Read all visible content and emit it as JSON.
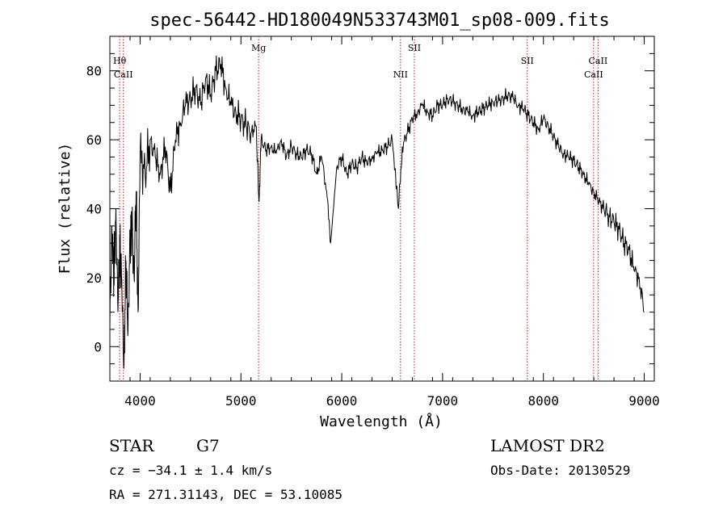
{
  "chart_data": {
    "type": "line",
    "title": "spec-56442-HD180049N533743M01_sp08-009.fits",
    "xlabel": "Wavelength (Å)",
    "ylabel": "Flux (relative)",
    "xlim": [
      3700,
      9100
    ],
    "ylim": [
      -10,
      90
    ],
    "x_ticks": [
      4000,
      5000,
      6000,
      7000,
      8000,
      9000
    ],
    "y_ticks": [
      0,
      20,
      40,
      60,
      80
    ],
    "grid": false,
    "series": [
      {
        "x": [
          3700,
          3720,
          3740,
          3760,
          3780,
          3800,
          3820,
          3840,
          3860,
          3880,
          3900,
          3920,
          3940,
          3960,
          3980,
          4000,
          4050,
          4100,
          4150,
          4200,
          4250,
          4300,
          4350,
          4400,
          4450,
          4500,
          4550,
          4600,
          4650,
          4700,
          4750,
          4800,
          4850,
          4900,
          4950,
          5000,
          5050,
          5100,
          5150,
          5180,
          5200,
          5250,
          5300,
          5350,
          5400,
          5450,
          5500,
          5550,
          5600,
          5650,
          5700,
          5750,
          5800,
          5850,
          5890,
          5950,
          6000,
          6050,
          6100,
          6150,
          6200,
          6250,
          6300,
          6350,
          6400,
          6450,
          6500,
          6563,
          6600,
          6650,
          6700,
          6750,
          6800,
          6850,
          6900,
          6950,
          7000,
          7050,
          7100,
          7150,
          7200,
          7250,
          7300,
          7350,
          7400,
          7450,
          7500,
          7550,
          7600,
          7650,
          7700,
          7750,
          7800,
          7850,
          7900,
          7950,
          8000,
          8050,
          8100,
          8150,
          8200,
          8250,
          8300,
          8350,
          8400,
          8450,
          8500,
          8550,
          8600,
          8650,
          8700,
          8750,
          8800,
          8850,
          8900,
          8950,
          9000
        ],
        "y": [
          5,
          35,
          20,
          40,
          10,
          30,
          15,
          -5,
          25,
          5,
          30,
          35,
          20,
          45,
          10,
          55,
          50,
          60,
          55,
          50,
          58,
          45,
          60,
          65,
          70,
          72,
          75,
          70,
          78,
          73,
          80,
          82,
          75,
          70,
          68,
          66,
          64,
          62,
          64,
          42,
          60,
          57,
          58,
          56,
          60,
          55,
          58,
          56,
          55,
          57,
          56,
          50,
          55,
          45,
          30,
          52,
          55,
          50,
          53,
          52,
          55,
          53,
          55,
          56,
          57,
          58,
          60,
          40,
          58,
          62,
          66,
          68,
          70,
          68,
          67,
          70,
          70,
          72,
          71,
          70,
          69,
          68,
          67,
          68,
          69,
          70,
          71,
          71,
          72,
          73,
          72,
          70,
          69,
          67,
          65,
          63,
          66,
          64,
          61,
          58,
          56,
          55,
          54,
          52,
          50,
          47,
          45,
          42,
          40,
          38,
          36,
          34,
          30,
          28,
          22,
          20,
          10
        ]
      }
    ],
    "annotations": [
      {
        "label": "Hθ",
        "x": 3797,
        "row": "upper"
      },
      {
        "label": "CaII",
        "x": 3834,
        "row": "lower"
      },
      {
        "label": "Mg",
        "x": 5175,
        "row": "top"
      },
      {
        "label": "NII",
        "x": 6583,
        "row": "lower"
      },
      {
        "label": "SII",
        "x": 6720,
        "row": "top"
      },
      {
        "label": "SII",
        "x": 7840,
        "row": "upper"
      },
      {
        "label": "CaII",
        "x": 8498,
        "row": "lower"
      },
      {
        "label": "CaII",
        "x": 8542,
        "row": "upper"
      }
    ]
  },
  "info": {
    "object_class": "STAR",
    "subclass": "G7",
    "cz": "cz = −34.1 ± 1.4 km/s",
    "radec": "RA = 271.31143, DEC =  53.10085",
    "survey": "LAMOST DR2",
    "obs_date": "Obs-Date: 20130529"
  },
  "colors": {
    "axis": "#000000",
    "line_marker": "#b22222"
  }
}
